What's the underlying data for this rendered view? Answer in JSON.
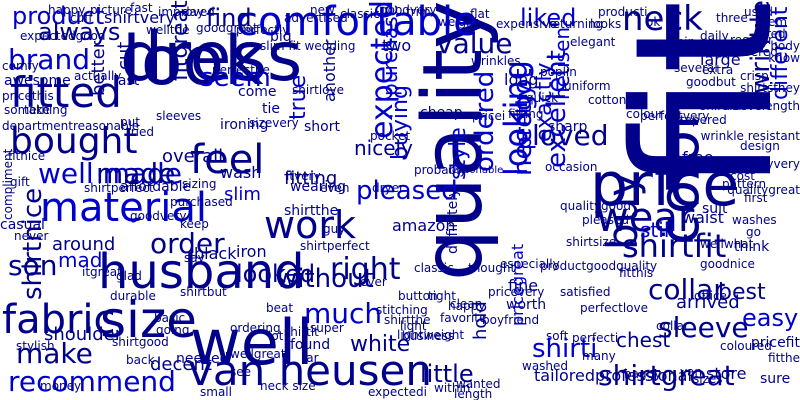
{
  "palette": {
    "dark": "#00008b",
    "blue": "#0000cd"
  },
  "words": [
    {
      "text": "fit",
      "color": "dark"
    },
    {
      "text": "quality",
      "color": "dark"
    },
    {
      "text": "look",
      "color": "dark"
    },
    {
      "text": "dress",
      "color": "dark"
    },
    {
      "text": "well",
      "color": "dark"
    },
    {
      "text": "price",
      "color": "dark"
    },
    {
      "text": "color",
      "color": "dark"
    },
    {
      "text": "husband",
      "color": "dark"
    },
    {
      "text": "size",
      "color": "dark"
    },
    {
      "text": "van heusen",
      "color": "dark"
    },
    {
      "text": "fitted",
      "color": "dark"
    },
    {
      "text": "bought",
      "color": "dark"
    },
    {
      "text": "material",
      "color": "blue"
    },
    {
      "text": "comfortable",
      "color": "blue"
    },
    {
      "text": "feel",
      "color": "dark"
    },
    {
      "text": "work",
      "color": "dark"
    },
    {
      "text": "wear",
      "color": "dark"
    },
    {
      "text": "fabric",
      "color": "dark"
    },
    {
      "text": "buy",
      "color": "dark"
    },
    {
      "text": "looking",
      "color": "blue"
    },
    {
      "text": "expected",
      "color": "blue"
    },
    {
      "text": "neck",
      "color": "dark"
    },
    {
      "text": "product",
      "color": "blue"
    },
    {
      "text": "brand",
      "color": "blue"
    },
    {
      "text": "well made",
      "color": "blue"
    },
    {
      "text": "shirtfit",
      "color": "dark"
    },
    {
      "text": "shirtgreat",
      "color": "dark"
    },
    {
      "text": "right",
      "color": "dark"
    },
    {
      "text": "much",
      "color": "blue"
    },
    {
      "text": "seem",
      "color": "blue"
    },
    {
      "text": "value",
      "color": "dark"
    },
    {
      "text": "liked",
      "color": "blue"
    },
    {
      "text": "loved",
      "color": "dark"
    },
    {
      "text": "pretty",
      "color": "blue"
    },
    {
      "text": "exactly",
      "color": "blue"
    },
    {
      "text": "wrinkle",
      "color": "dark"
    },
    {
      "text": "different",
      "color": "blue"
    },
    {
      "text": "collar",
      "color": "dark"
    },
    {
      "text": "sleeve",
      "color": "dark"
    },
    {
      "text": "excellent",
      "color": "blue"
    },
    {
      "text": "needgot",
      "color": "blue"
    },
    {
      "text": "style",
      "color": "blue"
    },
    {
      "text": "ordered",
      "color": "blue"
    },
    {
      "text": "order",
      "color": "dark"
    },
    {
      "text": "made",
      "color": "dark"
    },
    {
      "text": "son",
      "color": "dark"
    },
    {
      "text": "make",
      "color": "dark"
    },
    {
      "text": "recommend",
      "color": "blue"
    },
    {
      "text": "shirti",
      "color": "blue"
    },
    {
      "text": "easy",
      "color": "blue"
    },
    {
      "text": "always",
      "color": "dark"
    },
    {
      "text": "find",
      "color": "dark"
    },
    {
      "text": "looked",
      "color": "dark"
    },
    {
      "text": "pleased",
      "color": "blue"
    },
    {
      "text": "without",
      "color": "dark"
    },
    {
      "text": "little",
      "color": "dark"
    },
    {
      "text": "shirtnice",
      "color": "dark"
    },
    {
      "text": "white",
      "color": "dark"
    },
    {
      "text": "buying",
      "color": "blue"
    },
    {
      "text": "true",
      "color": "blue"
    },
    {
      "text": "nicely",
      "color": "dark"
    },
    {
      "text": "still",
      "color": "blue"
    },
    {
      "text": "best",
      "color": "dark"
    },
    {
      "text": "chest",
      "color": "dark"
    },
    {
      "text": "heusen",
      "color": "blue"
    },
    {
      "text": "purchase",
      "color": "blue"
    },
    {
      "text": "overall",
      "color": "dark"
    },
    {
      "text": "better",
      "color": "dark"
    },
    {
      "text": "cut",
      "color": "dark"
    },
    {
      "text": "shoulder",
      "color": "dark"
    },
    {
      "text": "around",
      "color": "dark"
    },
    {
      "text": "slim",
      "color": "blue"
    },
    {
      "text": "fitting",
      "color": "dark"
    },
    {
      "text": "black",
      "color": "dark"
    },
    {
      "text": "iron",
      "color": "dark"
    },
    {
      "text": "long",
      "color": "dark"
    },
    {
      "text": "two",
      "color": "dark"
    },
    {
      "text": "shirtvery",
      "color": "dark"
    },
    {
      "text": "perfectly",
      "color": "dark"
    },
    {
      "text": "fitgreat",
      "color": "dark"
    },
    {
      "text": "decent",
      "color": "dark"
    },
    {
      "text": "arrived",
      "color": "dark"
    },
    {
      "text": "pricegreat",
      "color": "blue"
    },
    {
      "text": "tailoredprofessional",
      "color": "dark"
    },
    {
      "text": "hold",
      "color": "dark"
    },
    {
      "text": "fine",
      "color": "dark"
    },
    {
      "text": "wash",
      "color": "dark"
    },
    {
      "text": "slim fit wedding",
      "color": "dark"
    },
    {
      "text": "another",
      "color": "dark"
    },
    {
      "text": "sharp",
      "color": "dark"
    },
    {
      "text": "cheap",
      "color": "dark"
    },
    {
      "text": "mad",
      "color": "blue"
    },
    {
      "text": "free",
      "color": "dark"
    },
    {
      "text": "waist",
      "color": "dark"
    },
    {
      "text": "amazon",
      "color": "dark"
    },
    {
      "text": "shirtthe",
      "color": "dark"
    },
    {
      "text": "shirtit",
      "color": "dark"
    },
    {
      "text": "small",
      "color": "dark"
    },
    {
      "text": "neck size",
      "color": "dark"
    },
    {
      "text": "store",
      "color": "dark"
    },
    {
      "text": "length",
      "color": "dark"
    },
    {
      "text": "soft",
      "color": "dark"
    },
    {
      "text": "worth",
      "color": "dark"
    },
    {
      "text": "thought",
      "color": "dark"
    },
    {
      "text": "reasonable",
      "color": "dark"
    },
    {
      "text": "compliment",
      "color": "dark"
    },
    {
      "text": "actually",
      "color": "dark"
    },
    {
      "text": "awesome",
      "color": "dark"
    },
    {
      "text": "big",
      "color": "dark"
    },
    {
      "text": "suit",
      "color": "dark"
    },
    {
      "text": "think",
      "color": "dark"
    },
    {
      "text": "go",
      "color": "dark"
    },
    {
      "text": "thank",
      "color": "dark"
    },
    {
      "text": "large",
      "color": "dark"
    },
    {
      "text": "several",
      "color": "dark"
    },
    {
      "text": "classic",
      "color": "dark"
    },
    {
      "text": "button",
      "color": "dark"
    },
    {
      "text": "dryer",
      "color": "dark"
    },
    {
      "text": "even",
      "color": "dark"
    },
    {
      "text": "wearing",
      "color": "dark"
    },
    {
      "text": "definitely",
      "color": "dark"
    },
    {
      "text": "probably",
      "color": "dark"
    },
    {
      "text": "pocket",
      "color": "dark"
    },
    {
      "text": "wanted",
      "color": "dark"
    },
    {
      "text": "washed",
      "color": "dark"
    },
    {
      "text": "especially",
      "color": "dark"
    },
    {
      "text": "office",
      "color": "dark"
    },
    {
      "text": "say",
      "color": "dark"
    },
    {
      "text": "quick",
      "color": "dark"
    },
    {
      "text": "tie",
      "color": "dark"
    },
    {
      "text": "ironing",
      "color": "dark"
    },
    {
      "text": "come",
      "color": "dark"
    },
    {
      "text": "purchased",
      "color": "dark"
    },
    {
      "text": "gift",
      "color": "dark"
    },
    {
      "text": "affordable",
      "color": "dark"
    },
    {
      "text": "fitnice",
      "color": "dark"
    },
    {
      "text": "casual",
      "color": "dark"
    },
    {
      "text": "money",
      "color": "dark"
    },
    {
      "text": "never",
      "color": "dark"
    },
    {
      "text": "itgreat",
      "color": "dark"
    },
    {
      "text": "glad",
      "color": "dark"
    },
    {
      "text": "basic",
      "color": "dark"
    },
    {
      "text": "going",
      "color": "dark"
    },
    {
      "text": "ordering",
      "color": "dark"
    },
    {
      "text": "needed",
      "color": "dark"
    },
    {
      "text": "wellgreat",
      "color": "dark"
    },
    {
      "text": "lot",
      "color": "dark"
    },
    {
      "text": "found",
      "color": "dark"
    },
    {
      "text": "far",
      "color": "dark"
    },
    {
      "text": "see",
      "color": "dark"
    },
    {
      "text": "day",
      "color": "dark"
    },
    {
      "text": "shirtgood",
      "color": "dark"
    },
    {
      "text": "shirtbut",
      "color": "dark"
    },
    {
      "text": "expectedi",
      "color": "dark"
    },
    {
      "text": "boyfriend",
      "color": "dark"
    },
    {
      "text": "many",
      "color": "dark"
    },
    {
      "text": "pricevery",
      "color": "dark"
    },
    {
      "text": "light",
      "color": "dark"
    },
    {
      "text": "favorite",
      "color": "dark"
    },
    {
      "text": "super",
      "color": "dark"
    },
    {
      "text": "shirtthe",
      "color": "dark"
    },
    {
      "text": "stitching",
      "color": "dark"
    },
    {
      "text": "business",
      "color": "dark"
    },
    {
      "text": "happy",
      "color": "dark"
    },
    {
      "text": "perfecti",
      "color": "dark"
    },
    {
      "text": "satisfied",
      "color": "dark"
    },
    {
      "text": "pattern",
      "color": "dark"
    },
    {
      "text": "cost",
      "color": "dark"
    },
    {
      "text": "first",
      "color": "dark"
    },
    {
      "text": "design",
      "color": "dark"
    },
    {
      "text": "washes",
      "color": "dark"
    },
    {
      "text": "daily",
      "color": "dark"
    },
    {
      "text": "three",
      "color": "dark"
    },
    {
      "text": "extra",
      "color": "dark"
    },
    {
      "text": "goodbut",
      "color": "dark"
    },
    {
      "text": "crisp",
      "color": "dark"
    },
    {
      "text": "regular",
      "color": "dark"
    },
    {
      "text": "delivered",
      "color": "dark"
    },
    {
      "text": "tapered",
      "color": "dark"
    },
    {
      "text": "keep",
      "color": "dark"
    },
    {
      "text": "sizing",
      "color": "dark"
    },
    {
      "text": "durable",
      "color": "dark"
    },
    {
      "text": "take",
      "color": "dark"
    },
    {
      "text": "tried",
      "color": "dark"
    },
    {
      "text": "last",
      "color": "dark"
    },
    {
      "text": "put",
      "color": "dark"
    },
    {
      "text": "short",
      "color": "dark"
    },
    {
      "text": "beat",
      "color": "dark"
    },
    {
      "text": "shirtlove",
      "color": "dark"
    },
    {
      "text": "shirtperfect",
      "color": "dark"
    },
    {
      "text": "goodgreat",
      "color": "dark"
    },
    {
      "text": "wellthe",
      "color": "dark"
    },
    {
      "text": "pricei",
      "color": "dark"
    },
    {
      "text": "poplin",
      "color": "dark"
    },
    {
      "text": "uniform",
      "color": "dark"
    },
    {
      "text": "cotton",
      "color": "dark"
    },
    {
      "text": "tight",
      "color": "dark"
    },
    {
      "text": "clean",
      "color": "dark"
    },
    {
      "text": "stylish",
      "color": "dark"
    },
    {
      "text": "back",
      "color": "dark"
    },
    {
      "text": "baggy",
      "color": "dark"
    },
    {
      "text": "coloured",
      "color": "dark"
    },
    {
      "text": "van",
      "color": "dark"
    },
    {
      "text": "pricefit",
      "color": "dark"
    },
    {
      "text": "fitthe",
      "color": "dark"
    },
    {
      "text": "sure",
      "color": "dark"
    },
    {
      "text": "used",
      "color": "dark"
    },
    {
      "text": "item",
      "color": "dark"
    },
    {
      "text": "red",
      "color": "dark"
    },
    {
      "text": "body",
      "color": "dark"
    },
    {
      "text": "know",
      "color": "dark"
    },
    {
      "text": "shirtsthey",
      "color": "dark"
    },
    {
      "text": "sleevelength",
      "color": "dark"
    },
    {
      "text": "wrinkle resistant",
      "color": "dark"
    },
    {
      "text": "qualityvery",
      "color": "dark"
    },
    {
      "text": "qualitygreat",
      "color": "dark"
    },
    {
      "text": "shirtfor",
      "color": "dark"
    },
    {
      "text": "perfectvery",
      "color": "dark"
    },
    {
      "text": "thin",
      "color": "dark"
    },
    {
      "text": "ok",
      "color": "dark"
    },
    {
      "text": "colour",
      "color": "dark"
    },
    {
      "text": "producti",
      "color": "dark"
    },
    {
      "text": "looks",
      "color": "dark"
    },
    {
      "text": "elegant",
      "color": "dark"
    },
    {
      "text": "returning",
      "color": "dark"
    },
    {
      "text": "expensive",
      "color": "dark"
    },
    {
      "text": "flat",
      "color": "dark"
    },
    {
      "text": "weight",
      "color": "dark"
    },
    {
      "text": "trim",
      "color": "dark"
    },
    {
      "text": "goodvery",
      "color": "dark"
    },
    {
      "text": "classic",
      "color": "dark"
    },
    {
      "text": "new",
      "color": "dark"
    },
    {
      "text": "advertised",
      "color": "dark"
    },
    {
      "text": "improved",
      "color": "dark"
    },
    {
      "text": "fast",
      "color": "dark"
    },
    {
      "text": "picture",
      "color": "dark"
    },
    {
      "text": "cuff",
      "color": "dark"
    },
    {
      "text": "happy",
      "color": "dark"
    },
    {
      "text": "expectedgood",
      "color": "dark"
    },
    {
      "text": "comfy",
      "color": "dark"
    },
    {
      "text": "pricethis",
      "color": "dark"
    },
    {
      "text": "something",
      "color": "dark"
    },
    {
      "text": "departmentreasonable",
      "color": "dark"
    },
    {
      "text": "goodvery",
      "color": "dark"
    },
    {
      "text": "sleeves",
      "color": "dark"
    },
    {
      "text": "shirtperfect",
      "color": "dark"
    },
    {
      "text": "productgoodquality",
      "color": "dark"
    },
    {
      "text": "shirtsize",
      "color": "dark"
    },
    {
      "text": "qualitygood",
      "color": "dark"
    },
    {
      "text": "perfectlove",
      "color": "dark"
    },
    {
      "text": "goodnice",
      "color": "dark"
    },
    {
      "text": "wellwhat",
      "color": "dark"
    },
    {
      "text": "perfecthe",
      "color": "dark"
    },
    {
      "text": "sizevery",
      "color": "dark"
    },
    {
      "text": "itvery",
      "color": "dark"
    },
    {
      "text": "guy",
      "color": "dark"
    },
    {
      "text": "ever",
      "color": "dark"
    },
    {
      "text": "lightweight",
      "color": "dark"
    },
    {
      "text": "within",
      "color": "dark"
    },
    {
      "text": "wrinkles",
      "color": "dark"
    },
    {
      "text": "fitting",
      "color": "dark"
    },
    {
      "text": "occasion",
      "color": "dark"
    },
    {
      "text": "pleased",
      "color": "dark"
    },
    {
      "text": "fitthis",
      "color": "dark"
    },
    {
      "text": "collar",
      "color": "dark"
    },
    {
      "text": "sizes",
      "color": "dark"
    }
  ]
}
